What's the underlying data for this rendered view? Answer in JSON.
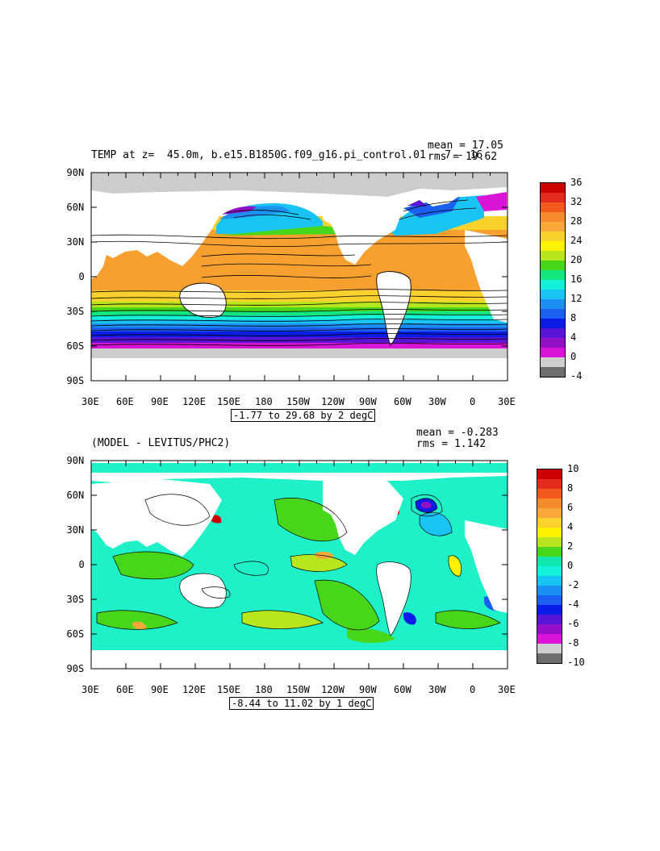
{
  "panels": [
    {
      "id": "top",
      "title": "TEMP at z=  45.0m, b.e15.B1850G.f09_g16.pi_control.01   7 - 16",
      "stats": [
        "mean = 17.05",
        "rms = 19.62"
      ],
      "range_text": "-1.77 to 29.68 by 2 degC",
      "colorbar_labels": [
        "36",
        "32",
        "28",
        "24",
        "20",
        "16",
        "12",
        "8",
        "4",
        "0",
        "-4"
      ],
      "colorbar_colors": [
        "#cc0000",
        "#e32b1e",
        "#f25a1e",
        "#f58b2a",
        "#f7a838",
        "#fbd12e",
        "#fff200",
        "#b7e61e",
        "#48d61a",
        "#12e67f",
        "#14f0d9",
        "#19c4f5",
        "#1b8ff2",
        "#1a5ff0",
        "#0a1ce6",
        "#5a14d6",
        "#9410c8",
        "#d914d6",
        "#cfcfcf",
        "#6e6e6e"
      ]
    },
    {
      "id": "bottom",
      "title": "(MODEL - LEVITUS/PHC2)",
      "stats": [
        "mean = -0.283",
        "rms = 1.142"
      ],
      "range_text": "-8.44 to 11.02 by 1 degC",
      "colorbar_labels": [
        "10",
        "8",
        "6",
        "4",
        "2",
        "0",
        "-2",
        "-4",
        "-6",
        "-8",
        "-10"
      ],
      "colorbar_colors": [
        "#cc0000",
        "#e32b1e",
        "#f25a1e",
        "#f58b2a",
        "#f7a838",
        "#fbd12e",
        "#fff200",
        "#b7e61e",
        "#48d61a",
        "#12e6b0",
        "#14f0d9",
        "#19c4f5",
        "#1b8ff2",
        "#1a5ff0",
        "#0a1ce6",
        "#5a14d6",
        "#9410c8",
        "#d914d6",
        "#cfcfcf",
        "#6e6e6e"
      ]
    }
  ],
  "x_ticks": [
    "30E",
    "60E",
    "90E",
    "120E",
    "150E",
    "180",
    "150W",
    "120W",
    "90W",
    "60W",
    "30W",
    "0",
    "30E"
  ],
  "y_ticks": [
    "90N",
    "60N",
    "30N",
    "0",
    "30S",
    "60S",
    "90S"
  ],
  "colors": {
    "land": "#ffffff",
    "sea_ice": "#cccccc",
    "warm": "#f5a030",
    "anomaly_base": "#1ef0c8"
  }
}
